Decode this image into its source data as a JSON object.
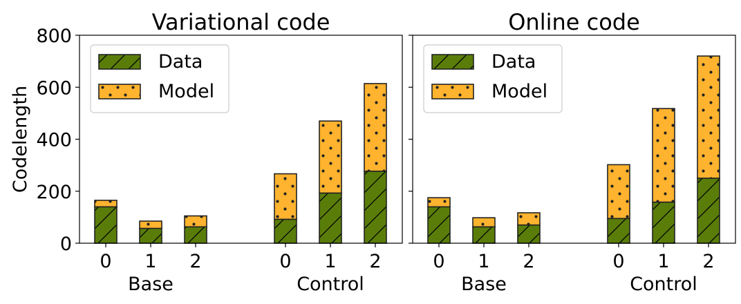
{
  "chart_data": [
    {
      "type": "bar",
      "stacked": true,
      "title": "Variational code",
      "ylabel": "Codelength",
      "ylim": [
        0,
        800
      ],
      "yticks": [
        0,
        200,
        400,
        600,
        800
      ],
      "grid": false,
      "legend": "top-left",
      "groups": [
        {
          "label": "Base",
          "categories": [
            "0",
            "1",
            "2"
          ]
        },
        {
          "label": "Control",
          "categories": [
            "0",
            "1",
            "2"
          ]
        }
      ],
      "series": [
        {
          "name": "Data",
          "color": "#5a7d0a",
          "hatch": "diagonal",
          "values": [
            140,
            57,
            63,
            92,
            193,
            277
          ]
        },
        {
          "name": "Model",
          "color": "#ffb32e",
          "hatch": "dots",
          "values": [
            25,
            28,
            42,
            175,
            277,
            337
          ]
        }
      ]
    },
    {
      "type": "bar",
      "stacked": true,
      "title": "Online code",
      "ylim": [
        0,
        800
      ],
      "yticks": [
        0,
        200,
        400,
        600,
        800
      ],
      "grid": false,
      "legend": "top-left",
      "groups": [
        {
          "label": "Base",
          "categories": [
            "0",
            "1",
            "2"
          ]
        },
        {
          "label": "Control",
          "categories": [
            "0",
            "1",
            "2"
          ]
        }
      ],
      "series": [
        {
          "name": "Data",
          "color": "#5a7d0a",
          "hatch": "diagonal",
          "values": [
            140,
            63,
            70,
            95,
            158,
            250
          ]
        },
        {
          "name": "Model",
          "color": "#ffb32e",
          "hatch": "dots",
          "values": [
            35,
            35,
            47,
            207,
            360,
            470
          ]
        }
      ]
    }
  ]
}
